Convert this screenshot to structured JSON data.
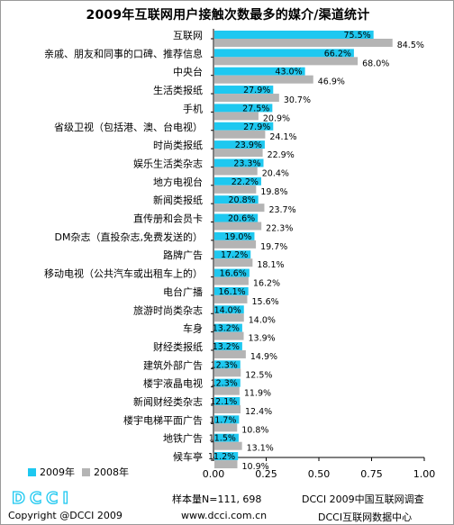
{
  "chart_data": {
    "type": "bar",
    "orientation": "horizontal",
    "title": "2009年互联网用户接触次数最多的媒介/渠道统计",
    "categories": [
      "互联网",
      "亲戚、朋友和同事的口碑、推荐信息",
      "中央台",
      "生活类报纸",
      "手机",
      "省级卫视（包括港、澳、台电视）",
      "时尚类报纸",
      "娱乐生活类杂志",
      "地方电视台",
      "新闻类报纸",
      "直传册和会员卡",
      "DM杂志（直投杂志,免费发送的）",
      "路牌广告",
      "移动电视（公共汽车或出租车上的）",
      "电台广播",
      "旅游时尚类杂志",
      "车身",
      "财经类报纸",
      "建筑外部广告",
      "楼宇液晶电视",
      "新闻财经类杂志",
      "楼宇电梯平面广告",
      "地铁广告",
      "候车亭"
    ],
    "series": [
      {
        "name": "2009年",
        "color": "#1ec8f0",
        "values": [
          0.755,
          0.662,
          0.43,
          0.279,
          0.275,
          0.279,
          0.239,
          0.233,
          0.222,
          0.208,
          0.206,
          0.19,
          0.172,
          0.166,
          0.161,
          0.14,
          0.132,
          0.132,
          0.123,
          0.123,
          0.121,
          0.117,
          0.115,
          0.112
        ],
        "labels": [
          "75.5%",
          "66.2%",
          "43.0%",
          "27.9%",
          "27.5%",
          "27.9%",
          "23.9%",
          "23.3%",
          "22.2%",
          "20.8%",
          "20.6%",
          "19.0%",
          "17.2%",
          "16.6%",
          "16.1%",
          "14.0%",
          "13.2%",
          "13.2%",
          "12.3%",
          "12.3%",
          "12.1%",
          "11.7%",
          "11.5%",
          "11.2%"
        ]
      },
      {
        "name": "2008年",
        "color": "#b4b4b4",
        "values": [
          0.845,
          0.68,
          0.469,
          0.307,
          0.209,
          0.241,
          0.229,
          0.204,
          0.198,
          0.237,
          0.223,
          0.197,
          0.181,
          0.162,
          0.156,
          0.14,
          0.139,
          0.149,
          0.125,
          0.119,
          0.124,
          0.108,
          0.131,
          0.109
        ],
        "labels": [
          "84.5%",
          "68.0%",
          "46.9%",
          "30.7%",
          "20.9%",
          "24.1%",
          "22.9%",
          "20.4%",
          "19.8%",
          "23.7%",
          "22.3%",
          "19.7%",
          "18.1%",
          "16.2%",
          "15.6%",
          "14.0%",
          "13.9%",
          "14.9%",
          "12.5%",
          "11.9%",
          "12.4%",
          "10.8%",
          "13.1%",
          "10.9%"
        ]
      }
    ],
    "xlim": [
      0,
      1
    ],
    "xticks": [
      "0.00",
      "0.25",
      "0.50",
      "0.75",
      "1.00"
    ],
    "grid": false,
    "legend": "bottom-left"
  },
  "footer": {
    "logo_text": "DCCI",
    "sample": "样本量N=111, 698",
    "org_survey": "DCCI 2009中国互联网调查",
    "copyright": "Copyright @DCCI 2009",
    "website": "www.dcci.com.cn",
    "org_center": "DCCI互联网数据中心"
  },
  "colors": {
    "series_2009": "#1ec8f0",
    "series_2008": "#b4b4b4",
    "logo": "#1ec8f0"
  }
}
